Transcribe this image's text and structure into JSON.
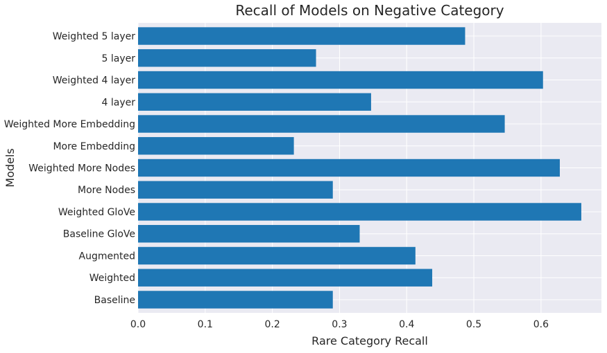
{
  "chart_data": {
    "type": "bar",
    "orientation": "horizontal",
    "title": "Recall of Models on Negative Category",
    "xlabel": "Rare Category Recall",
    "ylabel": "Models",
    "categories": [
      "Baseline",
      "Weighted",
      "Augmented",
      "Baseline GloVe",
      "Weighted GloVe",
      "More Nodes",
      "Weighted More Nodes",
      "More Embedding",
      "Weighted More Embedding",
      "4 layer",
      "Weighted 4 layer",
      "5 layer",
      "Weighted 5 layer"
    ],
    "values": [
      0.29,
      0.438,
      0.413,
      0.33,
      0.66,
      0.29,
      0.628,
      0.232,
      0.546,
      0.347,
      0.603,
      0.265,
      0.487
    ],
    "xlim": [
      0,
      0.69
    ],
    "xticks": [
      "0.0",
      "0.1",
      "0.2",
      "0.3",
      "0.4",
      "0.5",
      "0.6"
    ],
    "grid": true,
    "legend": "none",
    "style": "seaborn-darkgrid",
    "colors": {
      "bar": "#1f77b4",
      "plot_background": "#eaeaf2",
      "grid": "#ffffff",
      "text": "#262626"
    }
  }
}
